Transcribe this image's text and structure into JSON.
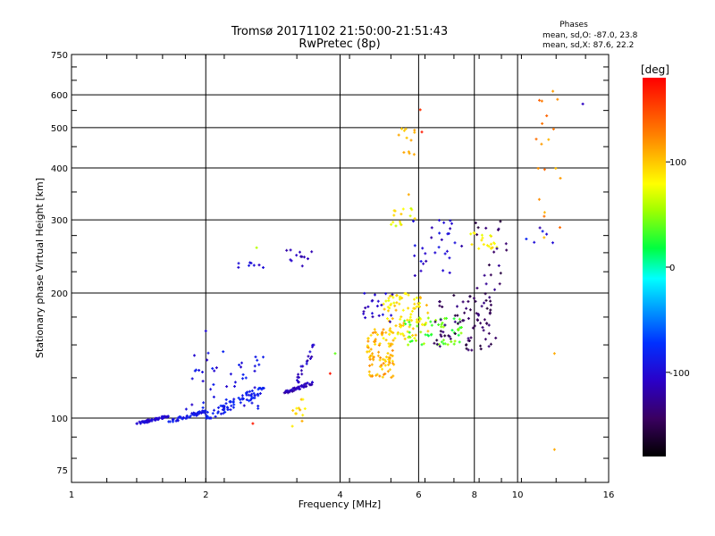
{
  "chart_data": {
    "type": "scatter",
    "title": "Tromsø 20171102 21:50:00-21:51:43",
    "subtitle": "RwPretec (8p)",
    "xlabel": "Frequency [MHz]",
    "ylabel": "Stationary phase Virtual Height [km]",
    "x_scale": "log",
    "y_scale": "log",
    "xlim": [
      1,
      16
    ],
    "ylim": [
      70,
      750
    ],
    "x_ticks": [
      1,
      2,
      4,
      6,
      8,
      10,
      16
    ],
    "y_ticks": [
      75,
      100,
      200,
      300,
      400,
      500,
      600,
      750
    ],
    "grid": true,
    "stats": {
      "heading": "Phases",
      "line_o": "mean, sd,O: -87.0, 23.8",
      "line_x": "mean, sd,X:  87.6, 22.2"
    },
    "colorbar": {
      "label": "[deg]",
      "range": [
        -180,
        180
      ],
      "ticks": [
        -100,
        0,
        100
      ],
      "colormap": "rainbow"
    },
    "clusters": [
      {
        "name": "low-trace-a",
        "x": [
          1.4,
          1.65
        ],
        "y": [
          97,
          101
        ],
        "phase": [
          -110,
          -95
        ],
        "n": 60
      },
      {
        "name": "low-trace-b",
        "x": [
          1.65,
          2.0
        ],
        "y": [
          98,
          104
        ],
        "phase": [
          -100,
          -80
        ],
        "n": 55
      },
      {
        "name": "low-trace-c",
        "x": [
          2.0,
          2.7
        ],
        "y": [
          100,
          118
        ],
        "phase": [
          -95,
          -70
        ],
        "n": 80
      },
      {
        "name": "low-scatter",
        "x": [
          1.8,
          2.7
        ],
        "y": [
          105,
          145
        ],
        "phase": [
          -110,
          -80
        ],
        "n": 45
      },
      {
        "name": "mid-trace",
        "x": [
          3.0,
          3.5
        ],
        "y": [
          115,
          122
        ],
        "phase": [
          -125,
          -100
        ],
        "n": 45
      },
      {
        "name": "mid-rise",
        "x": [
          3.2,
          3.5
        ],
        "y": [
          122,
          150
        ],
        "phase": [
          -120,
          -95
        ],
        "n": 20
      },
      {
        "name": "mid-yellow",
        "x": [
          3.1,
          3.35
        ],
        "y": [
          95,
          112
        ],
        "phase": [
          80,
          110
        ],
        "n": 12
      },
      {
        "name": "upper-a",
        "x": [
          2.35,
          2.7
        ],
        "y": [
          228,
          240
        ],
        "phase": [
          -110,
          -90
        ],
        "n": 8
      },
      {
        "name": "upper-b",
        "x": [
          3.0,
          3.5
        ],
        "y": [
          232,
          255
        ],
        "phase": [
          -130,
          -100
        ],
        "n": 12
      },
      {
        "name": "f-yellow-low",
        "x": [
          4.6,
          5.3
        ],
        "y": [
          125,
          165
        ],
        "phase": [
          90,
          125
        ],
        "n": 95
      },
      {
        "name": "f-yellow-mid",
        "x": [
          5.0,
          6.3
        ],
        "y": [
          155,
          200
        ],
        "phase": [
          70,
          110
        ],
        "n": 90
      },
      {
        "name": "f-green",
        "x": [
          5.5,
          7.5
        ],
        "y": [
          150,
          175
        ],
        "phase": [
          20,
          60
        ],
        "n": 60
      },
      {
        "name": "f-blue-a",
        "x": [
          4.5,
          5.3
        ],
        "y": [
          170,
          200
        ],
        "phase": [
          -120,
          -90
        ],
        "n": 20
      },
      {
        "name": "f-purple",
        "x": [
          6.5,
          9.0
        ],
        "y": [
          145,
          200
        ],
        "phase": [
          -160,
          -130
        ],
        "n": 80
      },
      {
        "name": "f-blue-b",
        "x": [
          5.8,
          7.5
        ],
        "y": [
          220,
          300
        ],
        "phase": [
          -120,
          -90
        ],
        "n": 30
      },
      {
        "name": "f-greenyellow-top",
        "x": [
          5.2,
          6.0
        ],
        "y": [
          290,
          320
        ],
        "phase": [
          60,
          100
        ],
        "n": 15
      },
      {
        "name": "f-yellow-top",
        "x": [
          5.4,
          5.9
        ],
        "y": [
          430,
          500
        ],
        "phase": [
          95,
          115
        ],
        "n": 12
      },
      {
        "name": "f-right-yellow",
        "x": [
          7.8,
          9.0
        ],
        "y": [
          255,
          280
        ],
        "phase": [
          70,
          100
        ],
        "n": 20
      },
      {
        "name": "f-right-purple",
        "x": [
          8.0,
          9.5
        ],
        "y": [
          200,
          300
        ],
        "phase": [
          -160,
          -125
        ],
        "n": 20
      },
      {
        "name": "far-right",
        "x": [
          11.0,
          12.5
        ],
        "y": [
          240,
          600
        ],
        "phase": [
          100,
          140
        ],
        "n": 18
      },
      {
        "name": "far-right-blue",
        "x": [
          10.0,
          12.0
        ],
        "y": [
          260,
          300
        ],
        "phase": [
          -120,
          -80
        ],
        "n": 6
      }
    ],
    "isolated_points": [
      {
        "x": 14.0,
        "y": 570,
        "phase": -110
      },
      {
        "x": 6.05,
        "y": 552,
        "phase": 160
      },
      {
        "x": 6.1,
        "y": 488,
        "phase": 170
      },
      {
        "x": 12.1,
        "y": 84,
        "phase": 110
      },
      {
        "x": 12.1,
        "y": 143,
        "phase": 110
      },
      {
        "x": 12.0,
        "y": 612,
        "phase": 115
      },
      {
        "x": 2.0,
        "y": 162,
        "phase": -100
      },
      {
        "x": 2.6,
        "y": 257,
        "phase": 60
      },
      {
        "x": 3.8,
        "y": 128,
        "phase": 170
      },
      {
        "x": 3.9,
        "y": 143,
        "phase": 40
      },
      {
        "x": 2.55,
        "y": 97,
        "phase": 170
      },
      {
        "x": 5.7,
        "y": 345,
        "phase": 110
      }
    ]
  }
}
